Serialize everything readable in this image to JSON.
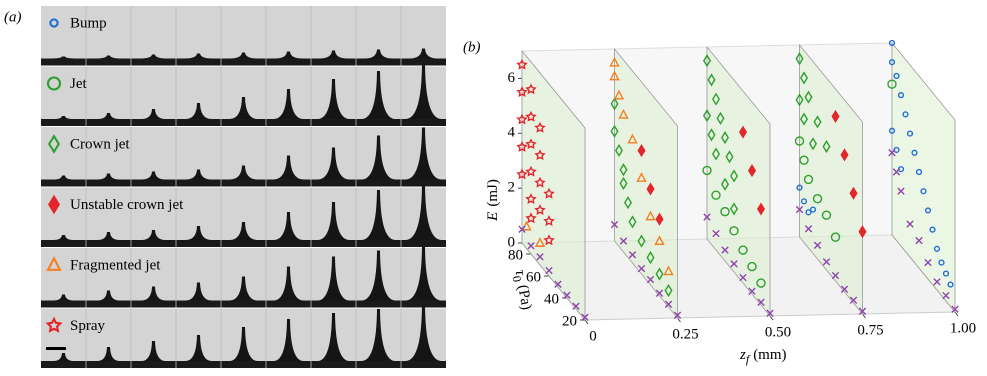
{
  "panel_a": {
    "label": "(a)"
  },
  "chart_data": {
    "type": "scatter3d",
    "label": "(b)",
    "xlabel": {
      "symbol": "z",
      "subscript": "f",
      "unit": "(mm)"
    },
    "ylabel": {
      "symbol": "E",
      "unit": "(mJ)"
    },
    "zlabel": {
      "symbol": "τ",
      "subscript": "0",
      "unit": "(Pa)"
    },
    "xlim": [
      0,
      1
    ],
    "ylim": [
      0,
      7
    ],
    "zlim": [
      20,
      90
    ],
    "xticks": [
      0,
      {
        "value": 0.25,
        "label": "0.25"
      },
      {
        "value": 0.5,
        "label": "0.50"
      },
      {
        "value": 0.75,
        "label": "0.75"
      },
      {
        "value": 1,
        "label": "1.00"
      }
    ],
    "yticks": [
      0,
      2,
      4,
      6
    ],
    "zticks": [
      20,
      40,
      60,
      80
    ],
    "planes": [
      0,
      0.25,
      0.5,
      0.75,
      1
    ],
    "series": [
      {
        "name": "Bump",
        "marker": "circle-small",
        "color": "#1f6fd1",
        "points": [
          [
            0.75,
            90,
            1.8
          ],
          [
            0.75,
            85,
            1.5
          ],
          [
            0.75,
            80,
            1.3
          ],
          [
            0.75,
            75,
            1.6
          ],
          [
            1,
            90,
            7
          ],
          [
            1,
            90,
            6.3
          ],
          [
            1,
            85,
            6
          ],
          [
            1,
            80,
            5.5
          ],
          [
            1,
            75,
            5
          ],
          [
            1,
            70,
            4.5
          ],
          [
            1,
            65,
            4
          ],
          [
            1,
            60,
            3.5
          ],
          [
            1,
            55,
            3
          ],
          [
            1,
            50,
            2.5
          ],
          [
            1,
            45,
            2
          ],
          [
            1,
            40,
            1.5
          ],
          [
            1,
            35,
            1.2
          ],
          [
            1,
            30,
            1
          ],
          [
            1,
            25,
            0.8
          ],
          [
            1,
            90,
            3.8
          ],
          [
            1,
            85,
            3.3
          ],
          [
            1,
            80,
            2.8
          ]
        ]
      },
      {
        "name": "Jet",
        "marker": "circle",
        "color": "#2ca02c",
        "points": [
          [
            0.5,
            90,
            2.5
          ],
          [
            0.5,
            80,
            2
          ],
          [
            0.5,
            70,
            1.8
          ],
          [
            0.5,
            60,
            1.5
          ],
          [
            0.5,
            50,
            1.2
          ],
          [
            0.5,
            40,
            1
          ],
          [
            0.5,
            30,
            0.8
          ],
          [
            0.75,
            90,
            3.5
          ],
          [
            0.75,
            85,
            3
          ],
          [
            0.75,
            80,
            2.5
          ],
          [
            0.75,
            70,
            2.2
          ],
          [
            0.75,
            60,
            2
          ],
          [
            0.75,
            50,
            1.6
          ],
          [
            1,
            90,
            5.5
          ]
        ]
      },
      {
        "name": "Crown jet",
        "marker": "diamond",
        "color": "#2ca02c",
        "points": [
          [
            0.25,
            90,
            5
          ],
          [
            0.25,
            90,
            4
          ],
          [
            0.25,
            85,
            3.5
          ],
          [
            0.25,
            80,
            3
          ],
          [
            0.25,
            80,
            2.5
          ],
          [
            0.25,
            75,
            2
          ],
          [
            0.25,
            70,
            1.5
          ],
          [
            0.25,
            60,
            1.2
          ],
          [
            0.25,
            50,
            1
          ],
          [
            0.25,
            40,
            0.8
          ],
          [
            0.25,
            30,
            0.6
          ],
          [
            0.5,
            90,
            6.5
          ],
          [
            0.5,
            85,
            6
          ],
          [
            0.5,
            80,
            5.5
          ],
          [
            0.5,
            75,
            5
          ],
          [
            0.5,
            70,
            4.5
          ],
          [
            0.5,
            65,
            4
          ],
          [
            0.5,
            60,
            3.5
          ],
          [
            0.5,
            90,
            4.5
          ],
          [
            0.5,
            85,
            4
          ],
          [
            0.5,
            80,
            3.5
          ],
          [
            0.5,
            70,
            2.8
          ],
          [
            0.5,
            60,
            2.3
          ],
          [
            0.75,
            90,
            6.5
          ],
          [
            0.75,
            85,
            6
          ],
          [
            0.75,
            80,
            5.5
          ],
          [
            0.75,
            70,
            5
          ],
          [
            0.75,
            60,
            4.5
          ],
          [
            0.75,
            90,
            5
          ],
          [
            0.75,
            85,
            4.5
          ],
          [
            0.75,
            75,
            4
          ]
        ]
      },
      {
        "name": "Unstable crown jet",
        "marker": "diamond-filled",
        "color": "#e3262b",
        "points": [
          [
            0.25,
            60,
            4.5
          ],
          [
            0.25,
            50,
            3.5
          ],
          [
            0.25,
            40,
            2.8
          ],
          [
            0.5,
            50,
            5.5
          ],
          [
            0.5,
            40,
            4.5
          ],
          [
            0.5,
            30,
            3.5
          ],
          [
            0.75,
            50,
            6
          ],
          [
            0.75,
            40,
            5
          ],
          [
            0.75,
            30,
            4
          ],
          [
            0.75,
            20,
            3
          ]
        ]
      },
      {
        "name": "Fragmented jet",
        "marker": "triangle",
        "color": "#f47f1f",
        "points": [
          [
            0,
            85,
            0.8
          ],
          [
            0,
            70,
            0.8
          ],
          [
            0.25,
            90,
            6.5
          ],
          [
            0.25,
            90,
            6
          ],
          [
            0.25,
            85,
            5.5
          ],
          [
            0.25,
            80,
            5
          ],
          [
            0.25,
            70,
            4.5
          ],
          [
            0.25,
            60,
            3.5
          ],
          [
            0.25,
            50,
            2.5
          ],
          [
            0.25,
            40,
            2
          ],
          [
            0.25,
            30,
            1.3
          ]
        ]
      },
      {
        "name": "Spray",
        "marker": "star",
        "color": "#e3262b",
        "points": [
          [
            0,
            90,
            6.5
          ],
          [
            0,
            90,
            5.5
          ],
          [
            0,
            90,
            4.5
          ],
          [
            0,
            90,
            3.5
          ],
          [
            0,
            90,
            2.5
          ],
          [
            0,
            80,
            6
          ],
          [
            0,
            80,
            5
          ],
          [
            0,
            80,
            4
          ],
          [
            0,
            80,
            3
          ],
          [
            0,
            80,
            2
          ],
          [
            0,
            80,
            1.3
          ],
          [
            0,
            70,
            5
          ],
          [
            0,
            70,
            4
          ],
          [
            0,
            70,
            3
          ],
          [
            0,
            70,
            2
          ],
          [
            0,
            60,
            3
          ],
          [
            0,
            60,
            2
          ],
          [
            0,
            60,
            1.3
          ]
        ]
      },
      {
        "marker": "cross",
        "color": "#8e44ad",
        "points": [
          [
            0,
            90,
            0.5
          ],
          [
            0,
            80,
            0.3
          ],
          [
            0,
            70,
            0.3
          ],
          [
            0,
            60,
            0.2
          ],
          [
            0,
            50,
            0.1
          ],
          [
            0,
            40,
            0.1
          ],
          [
            0,
            30,
            0.1
          ],
          [
            0,
            20,
            0.1
          ],
          [
            0.25,
            90,
            0.6
          ],
          [
            0.25,
            80,
            0.4
          ],
          [
            0.25,
            70,
            0.3
          ],
          [
            0.25,
            60,
            0.2
          ],
          [
            0.25,
            50,
            0.2
          ],
          [
            0.25,
            40,
            0.1
          ],
          [
            0.25,
            30,
            0.1
          ],
          [
            0.25,
            20,
            0.1
          ],
          [
            0.5,
            90,
            0.8
          ],
          [
            0.5,
            80,
            0.6
          ],
          [
            0.5,
            70,
            0.4
          ],
          [
            0.5,
            60,
            0.3
          ],
          [
            0.5,
            50,
            0.2
          ],
          [
            0.5,
            40,
            0.1
          ],
          [
            0.5,
            30,
            0.1
          ],
          [
            0.5,
            20,
            0.1
          ],
          [
            0.75,
            90,
            1
          ],
          [
            0.75,
            80,
            0.7
          ],
          [
            0.75,
            70,
            0.5
          ],
          [
            0.75,
            60,
            0.3
          ],
          [
            0.75,
            50,
            0.2
          ],
          [
            0.75,
            40,
            0.1
          ],
          [
            0.75,
            30,
            0.1
          ],
          [
            0.75,
            20,
            0.1
          ],
          [
            1,
            90,
            3
          ],
          [
            1,
            85,
            2.5
          ],
          [
            1,
            80,
            2
          ],
          [
            1,
            70,
            1.2
          ],
          [
            1,
            60,
            1
          ],
          [
            1,
            50,
            0.6
          ],
          [
            1,
            40,
            0.3
          ],
          [
            1,
            30,
            0.2
          ],
          [
            1,
            20,
            0.1
          ]
        ]
      }
    ]
  }
}
